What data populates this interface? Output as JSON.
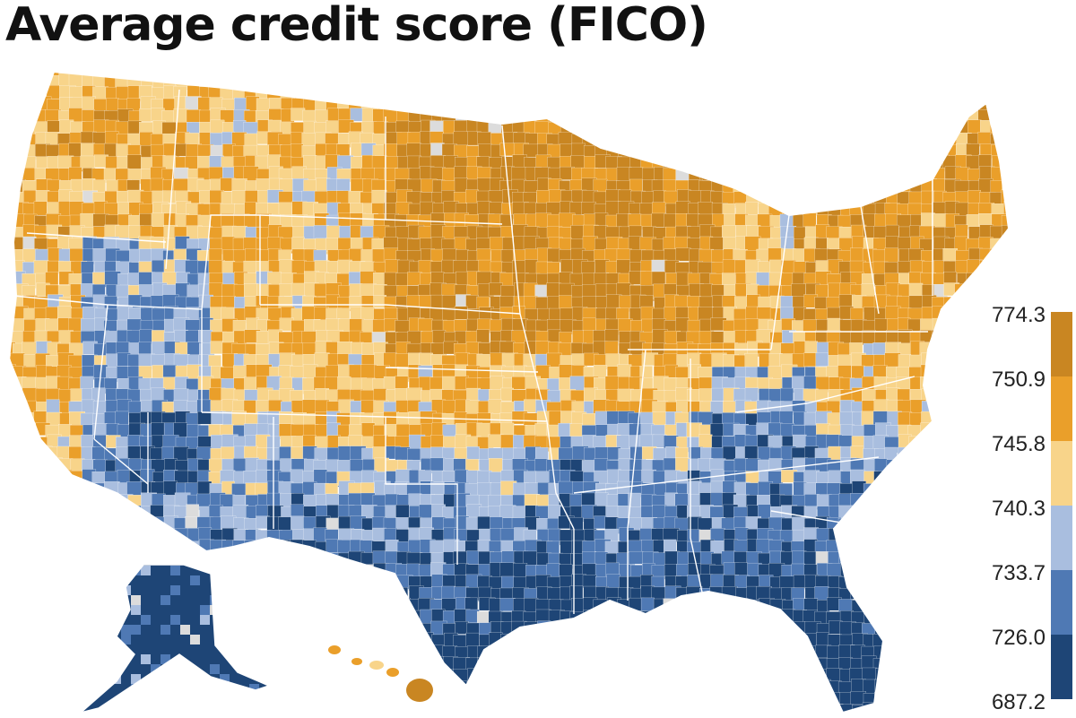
{
  "title": "Average credit score (FICO)",
  "legend": {
    "ticks": [
      "774.3",
      "750.9",
      "745.8",
      "740.3",
      "733.7",
      "726.0",
      "687.2"
    ],
    "colors": [
      "#c98622",
      "#ea9f2a",
      "#f8d48a",
      "#a9bedf",
      "#4f79b4",
      "#1e4576"
    ]
  },
  "palette": {
    "bin_774_751": "#c98622",
    "bin_751_746": "#ea9f2a",
    "bin_746_740": "#f8d48a",
    "bin_740_734": "#a9bedf",
    "bin_734_726": "#4f79b4",
    "bin_726_687": "#1e4576",
    "no_data": "#dcdcdc",
    "borders": "#ffffff"
  }
}
